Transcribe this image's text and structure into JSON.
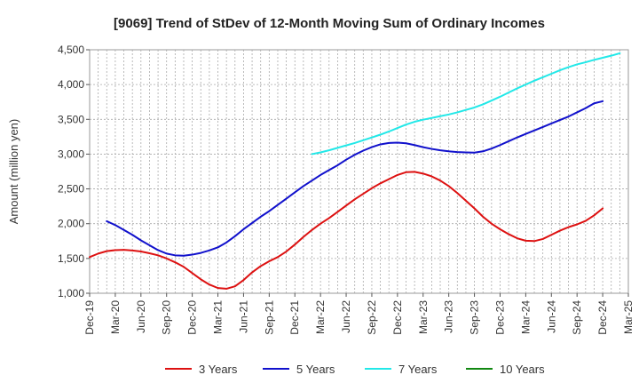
{
  "chart_data": {
    "type": "line",
    "title": "[9069]  Trend of StDev of 12-Month Moving Sum of Ordinary Incomes",
    "xlabel": "",
    "ylabel": "Amount (million yen)",
    "ylim": [
      1000,
      4500
    ],
    "yticks": [
      1000,
      1500,
      2000,
      2500,
      3000,
      3500,
      4000,
      4500
    ],
    "ytick_labels": [
      "1,000",
      "1,500",
      "2,000",
      "2,500",
      "3,000",
      "3,500",
      "4,000",
      "4,500"
    ],
    "x_start": "Dec-19",
    "x_end": "Mar-25",
    "x_tick_labels": [
      "Dec-19",
      "Mar-20",
      "Jun-20",
      "Sep-20",
      "Dec-20",
      "Mar-21",
      "Jun-21",
      "Sep-21",
      "Dec-21",
      "Mar-22",
      "Jun-22",
      "Sep-22",
      "Dec-22",
      "Mar-23",
      "Jun-23",
      "Sep-23",
      "Dec-23",
      "Mar-24",
      "Jun-24",
      "Sep-24",
      "Dec-24",
      "Mar-25"
    ],
    "grid": true,
    "legend_position": "bottom",
    "series": [
      {
        "name": "3 Years",
        "color": "#dd1111",
        "start": "Dec-19",
        "values": [
          1520,
          1570,
          1605,
          1620,
          1625,
          1615,
          1600,
          1575,
          1545,
          1500,
          1445,
          1380,
          1290,
          1200,
          1125,
          1075,
          1065,
          1100,
          1190,
          1300,
          1390,
          1460,
          1520,
          1600,
          1700,
          1810,
          1910,
          2000,
          2080,
          2170,
          2260,
          2350,
          2430,
          2510,
          2580,
          2640,
          2700,
          2740,
          2745,
          2720,
          2680,
          2620,
          2540,
          2440,
          2330,
          2220,
          2100,
          2000,
          1920,
          1850,
          1790,
          1755,
          1750,
          1780,
          1840,
          1900,
          1950,
          1990,
          2040,
          2120,
          2220
        ]
      },
      {
        "name": "5 Years",
        "color": "#1111cc",
        "start": "Feb-20",
        "values": [
          2035,
          1980,
          1910,
          1840,
          1760,
          1690,
          1620,
          1570,
          1545,
          1540,
          1555,
          1580,
          1615,
          1660,
          1730,
          1820,
          1920,
          2010,
          2100,
          2180,
          2270,
          2360,
          2450,
          2540,
          2620,
          2700,
          2770,
          2840,
          2920,
          2990,
          3050,
          3100,
          3140,
          3160,
          3165,
          3155,
          3130,
          3100,
          3075,
          3055,
          3040,
          3030,
          3025,
          3022,
          3040,
          3080,
          3130,
          3185,
          3240,
          3290,
          3340,
          3390,
          3440,
          3490,
          3540,
          3600,
          3660,
          3730,
          3760
        ]
      },
      {
        "name": "7 Years",
        "color": "#22e8e8",
        "start": "Feb-22",
        "values": [
          3000,
          3025,
          3055,
          3090,
          3125,
          3160,
          3200,
          3240,
          3280,
          3325,
          3375,
          3425,
          3465,
          3495,
          3520,
          3545,
          3570,
          3600,
          3635,
          3670,
          3715,
          3770,
          3825,
          3885,
          3945,
          4000,
          4055,
          4105,
          4155,
          4205,
          4250,
          4290,
          4320,
          4355,
          4385,
          4415,
          4450
        ]
      },
      {
        "name": "10 Years",
        "color": "#118811",
        "start": "Dec-24",
        "values": []
      }
    ]
  }
}
